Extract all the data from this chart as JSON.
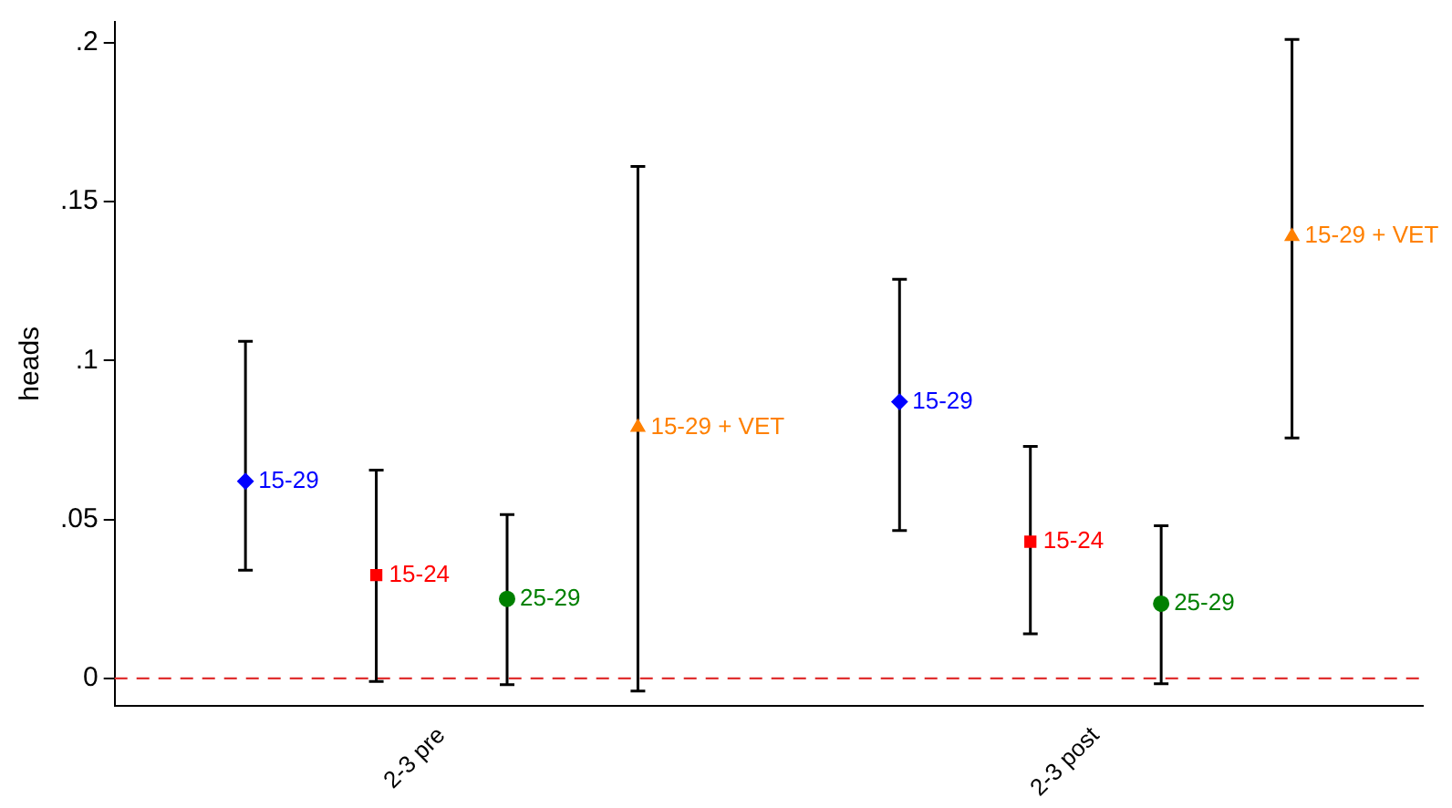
{
  "chart_data": {
    "type": "scatter",
    "ylabel": "heads",
    "categories": [
      "2-3 pre",
      "2-3 post"
    ],
    "ylim": [
      -0.0085,
      0.2065
    ],
    "yticks": [
      {
        "value": 0,
        "label": "0"
      },
      {
        "value": 0.05,
        "label": ".05"
      },
      {
        "value": 0.1,
        "label": ".1"
      },
      {
        "value": 0.15,
        "label": ".15"
      },
      {
        "value": 0.2,
        "label": ".2"
      }
    ],
    "grid": false,
    "legend": false,
    "series": [
      {
        "name": "15-29",
        "color": "#0000ff",
        "marker": "diamond",
        "x": [
          "2-3 pre",
          "2-3 post"
        ],
        "values": [
          0.062,
          0.087
        ],
        "errors": [
          [
            0.034,
            0.106
          ],
          [
            0.0465,
            0.1255
          ]
        ]
      },
      {
        "name": "15-24",
        "color": "#ff0000",
        "marker": "square",
        "x": [
          "2-3 pre",
          "2-3 post"
        ],
        "values": [
          0.0325,
          0.043
        ],
        "errors": [
          [
            -0.001,
            0.0655
          ],
          [
            0.014,
            0.073
          ]
        ]
      },
      {
        "name": "25-29",
        "color": "#008000",
        "marker": "circle",
        "x": [
          "2-3 pre",
          "2-3 post"
        ],
        "values": [
          0.025,
          0.0235
        ],
        "errors": [
          [
            -0.002,
            0.0515
          ],
          [
            -0.0017,
            0.048
          ]
        ]
      },
      {
        "name": "15-29 + VET",
        "color": "#ff8000",
        "marker": "triangle",
        "x": [
          "2-3 pre",
          "2-3 post"
        ],
        "values": [
          0.079,
          0.139
        ],
        "errors": [
          [
            -0.004,
            0.161
          ],
          [
            0.0756,
            0.201
          ]
        ]
      }
    ],
    "ref_lines": [
      {
        "axis": "y",
        "value": 0,
        "color": "#e03030",
        "line_style": "dashed"
      }
    ]
  }
}
